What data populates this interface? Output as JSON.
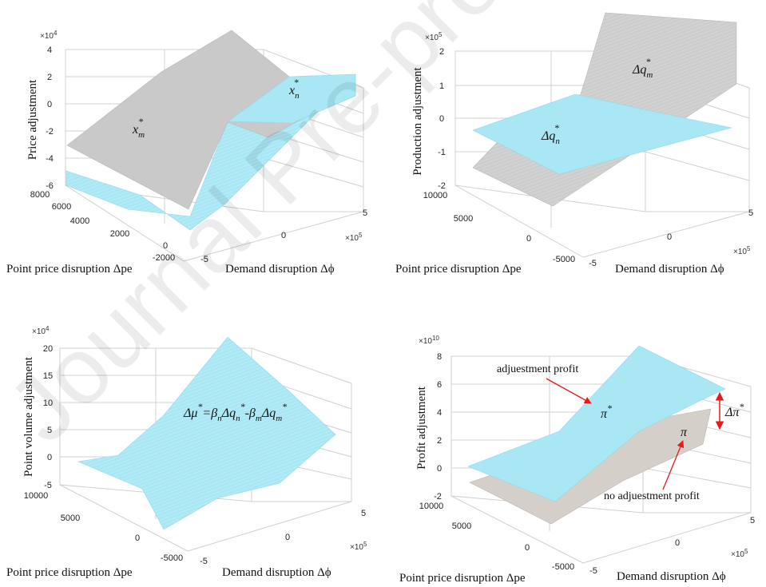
{
  "watermark": "Journal Pre-proof",
  "chart_data": [
    {
      "type": "surface3d",
      "panel": "price",
      "zlabel": "Price adjustment",
      "xlabel": "Demand disruption Δϕ",
      "ylabel": "Point price disruption Δpe",
      "x_multiplier": "×10",
      "x_multiplier_exp": "5",
      "z_multiplier": "×10",
      "z_multiplier_exp": "4",
      "xlim": [
        -5,
        5
      ],
      "x_ticks": [
        "-5",
        "0",
        "5"
      ],
      "ylim": [
        -2000,
        8000
      ],
      "y_ticks": [
        "-2000",
        "0",
        "2000",
        "4000",
        "6000",
        "8000"
      ],
      "zlim": [
        -6,
        4
      ],
      "z_ticks": [
        "-6",
        "-4",
        "-2",
        "0",
        "2",
        "4"
      ],
      "series": [
        {
          "name": "x_m*",
          "color": "#c8c8c8",
          "corners": {
            "x-5_y-2000": -0.9,
            "x5_y-2000": 1.0,
            "x-5_y8000": -2.9,
            "x5_y8000": 3.9
          }
        },
        {
          "name": "x_n*",
          "color": "#a9e7f5",
          "corners": {
            "x-5_y-2000": -4.8,
            "x5_y-2000": 2.4,
            "x-5_y8000": -5.0,
            "x5_y8000": 2.2
          }
        }
      ],
      "annotations": [
        {
          "text": "x",
          "sub": "m",
          "sup": "*"
        },
        {
          "text": "x",
          "sub": "n",
          "sup": "*"
        }
      ]
    },
    {
      "type": "surface3d",
      "panel": "production",
      "zlabel": "Production  adjustment",
      "xlabel": "Demand disruption Δϕ",
      "ylabel": "Point price disruption Δpe",
      "x_multiplier": "×10",
      "x_multiplier_exp": "5",
      "z_multiplier": "×10",
      "z_multiplier_exp": "5",
      "xlim": [
        -5,
        5
      ],
      "x_ticks": [
        "-5",
        "0",
        "5"
      ],
      "ylim": [
        -5000,
        10000
      ],
      "y_ticks": [
        "-5000",
        "0",
        "5000",
        "10000"
      ],
      "zlim": [
        -2,
        2
      ],
      "z_ticks": [
        "-2",
        "-1",
        "0",
        "1",
        "2"
      ],
      "series": [
        {
          "name": "Δq_m*",
          "color": "#d2d2d2",
          "corners": {
            "x-5_y-5000": -2.0,
            "x5_y-5000": 2.0,
            "x-5_y10000": -1.4,
            "x5_y10000": 2.0
          }
        },
        {
          "name": "Δq_n*",
          "color": "#a9e7f5",
          "corners": {
            "x-5_y-5000": -0.4,
            "x5_y-5000": 0.1,
            "x-5_y10000": -0.3,
            "x5_y10000": 0.3
          }
        }
      ],
      "annotations": [
        {
          "text": "Δq",
          "sub": "m",
          "sup": "*"
        },
        {
          "text": "Δq",
          "sub": "n",
          "sup": "*"
        }
      ]
    },
    {
      "type": "surface3d",
      "panel": "point-volume",
      "zlabel": "Point volume adjustment",
      "xlabel": "Demand disruption Δϕ",
      "ylabel": "Point price disruption Δpe",
      "x_multiplier": "×10",
      "x_multiplier_exp": "5",
      "z_multiplier": "×10",
      "z_multiplier_exp": "4",
      "xlim": [
        -5,
        5
      ],
      "x_ticks": [
        "-5",
        "0",
        "5"
      ],
      "ylim": [
        -5000,
        10000
      ],
      "y_ticks": [
        "-5000",
        "0",
        "5000",
        "10000"
      ],
      "zlim": [
        -5,
        20
      ],
      "z_ticks": [
        "-5",
        "0",
        "5",
        "10",
        "15",
        "20"
      ],
      "series": [
        {
          "name": "Δμ*",
          "color": "#a9e7f5",
          "corners": {
            "x-5_y-5000": -5,
            "x5_y-5000": 5,
            "x-5_y10000": -1,
            "x5_y10000": 20
          }
        }
      ],
      "annotations": [
        {
          "parts": [
            {
              "t": "Δμ"
            },
            {
              "t": "*",
              "sup": true
            },
            {
              "t": "=β"
            },
            {
              "t": "n",
              "sub": true
            },
            {
              "t": "Δq"
            },
            {
              "t": "n",
              "sub": true
            },
            {
              "t": "*",
              "sup": true
            },
            {
              "t": "-β"
            },
            {
              "t": "m",
              "sub": true
            },
            {
              "t": "Δq"
            },
            {
              "t": "m",
              "sub": true
            },
            {
              "t": "*",
              "sup": true
            }
          ]
        }
      ]
    },
    {
      "type": "surface3d",
      "panel": "profit",
      "zlabel": "Profit adjustment",
      "xlabel": "Demand disruption Δϕ",
      "ylabel": "Point price disruption Δpe",
      "x_multiplier": "×10",
      "x_multiplier_exp": "5",
      "z_multiplier": "×10",
      "z_multiplier_exp": "10",
      "xlim": [
        -5,
        5
      ],
      "x_ticks": [
        "-5",
        "0",
        "5"
      ],
      "ylim": [
        -5000,
        10000
      ],
      "y_ticks": [
        "-5000",
        "0",
        "5000",
        "10000"
      ],
      "zlim": [
        -2,
        8
      ],
      "z_ticks": [
        "-2",
        "0",
        "2",
        "4",
        "6",
        "8"
      ],
      "series": [
        {
          "name": "π",
          "color": "#d4cfc8",
          "corners": {
            "x-5_y-5000": -1.0,
            "x5_y-5000": 2.0,
            "x-5_y10000": -1.0,
            "x5_y10000": 2.0
          }
        },
        {
          "name": "π*",
          "color": "#a9e7f5",
          "corners": {
            "x-5_y-5000": 0.0,
            "x5_y-5000": 6.0,
            "x-5_y10000": 0.5,
            "x5_y10000": 6.0
          }
        }
      ],
      "annotations": [
        {
          "text": "adjuestment profit"
        },
        {
          "text": "no adjuestment profit"
        },
        {
          "text": "π",
          "sup": "*"
        },
        {
          "text": "π"
        },
        {
          "text": "Δπ",
          "sup": "*"
        }
      ]
    }
  ]
}
